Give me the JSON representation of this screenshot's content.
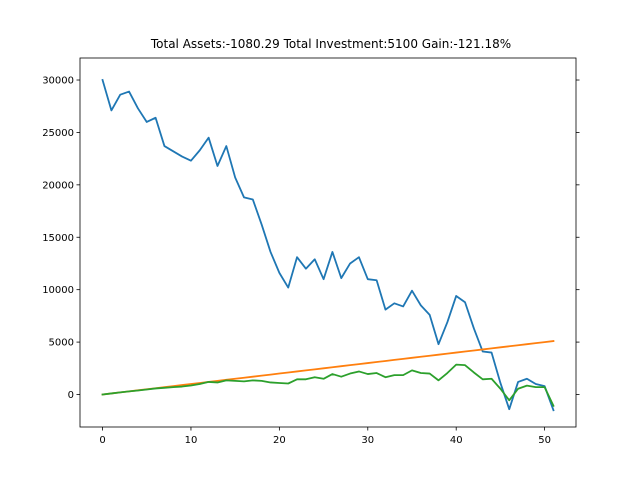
{
  "chart_data": {
    "type": "line",
    "title": "Total Assets:-1080.29  Total Investment:5100  Gain:-121.18%",
    "xlabel": "",
    "ylabel": "",
    "xlim": [
      -2.55,
      53.55
    ],
    "ylim": [
      -3100,
      32100
    ],
    "xticks": [
      0,
      10,
      20,
      30,
      40,
      50
    ],
    "yticks": [
      0,
      5000,
      10000,
      15000,
      20000,
      25000,
      30000
    ],
    "grid": false,
    "x": [
      0,
      1,
      2,
      3,
      4,
      5,
      6,
      7,
      8,
      9,
      10,
      11,
      12,
      13,
      14,
      15,
      16,
      17,
      18,
      19,
      20,
      21,
      22,
      23,
      24,
      25,
      26,
      27,
      28,
      29,
      30,
      31,
      32,
      33,
      34,
      35,
      36,
      37,
      38,
      39,
      40,
      41,
      42,
      43,
      44,
      45,
      46,
      47,
      48,
      49,
      50,
      51
    ],
    "series": [
      {
        "color": "#1f77b4",
        "values": [
          30000,
          27100,
          28600,
          28900,
          27300,
          26000,
          26400,
          23700,
          23200,
          22700,
          22300,
          23300,
          24500,
          21800,
          23700,
          20700,
          18800,
          18600,
          16200,
          13600,
          11600,
          10200,
          13100,
          12000,
          12900,
          11000,
          13600,
          11100,
          12500,
          13100,
          11000,
          10900,
          8100,
          8700,
          8400,
          9900,
          8500,
          7600,
          4800,
          6900,
          9400,
          8800,
          6300,
          4100,
          4000,
          1100,
          -1400,
          1200,
          1500,
          1000,
          800,
          -1500
        ]
      },
      {
        "color": "#ff7f0e",
        "values": [
          0,
          100,
          200,
          300,
          400,
          500,
          600,
          700,
          800,
          900,
          1000,
          1100,
          1200,
          1300,
          1400,
          1500,
          1600,
          1700,
          1800,
          1900,
          2000,
          2100,
          2200,
          2300,
          2400,
          2500,
          2600,
          2700,
          2800,
          2900,
          3000,
          3100,
          3200,
          3300,
          3400,
          3500,
          3600,
          3700,
          3800,
          3900,
          4000,
          4100,
          4200,
          4300,
          4400,
          4500,
          4600,
          4700,
          4800,
          4900,
          5000,
          5100
        ]
      },
      {
        "color": "#2ca02c",
        "values": [
          0,
          100,
          200,
          300,
          380,
          480,
          580,
          640,
          700,
          760,
          860,
          1000,
          1200,
          1150,
          1350,
          1300,
          1250,
          1350,
          1300,
          1150,
          1100,
          1050,
          1450,
          1450,
          1650,
          1500,
          1950,
          1700,
          2000,
          2200,
          1950,
          2050,
          1650,
          1850,
          1850,
          2300,
          2050,
          2000,
          1350,
          2050,
          2850,
          2800,
          2100,
          1450,
          1500,
          550,
          -550,
          550,
          850,
          700,
          700,
          -1080
        ]
      }
    ]
  }
}
